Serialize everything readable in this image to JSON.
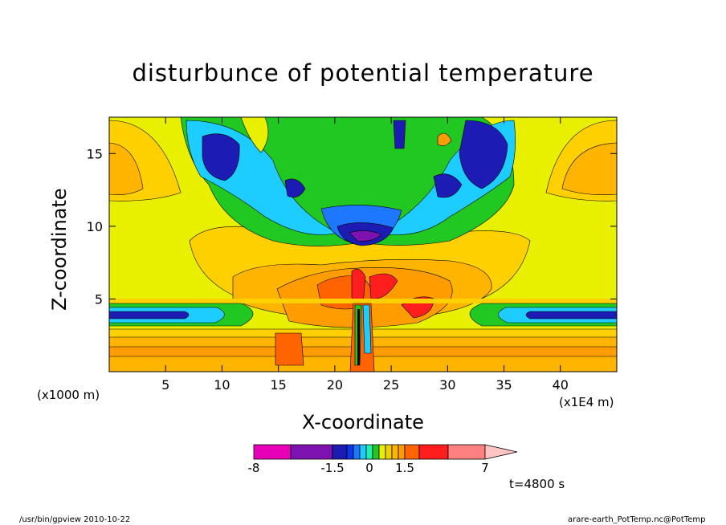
{
  "chart_data": {
    "type": "heatmap",
    "title": "disturbunce of potential temperature",
    "xlabel": "X-coordinate",
    "ylabel": "Z-coordinate",
    "x_unit": "(x1E4 m)",
    "y_unit": "(x1000 m)",
    "xlim": [
      0,
      45
    ],
    "ylim": [
      0,
      17.5
    ],
    "x_ticks": [
      "5",
      "10",
      "15",
      "20",
      "25",
      "30",
      "35",
      "40"
    ],
    "y_ticks": [
      "5",
      "10",
      "15"
    ],
    "colorbar": {
      "levels": [
        -8,
        -4,
        -1.5,
        -1,
        -0.75,
        -0.5,
        -0.25,
        0,
        0.25,
        0.5,
        0.75,
        1,
        1.5,
        3.5,
        5,
        7
      ],
      "labels": [
        "-8",
        "-1.5",
        "0",
        "1.5",
        "7"
      ],
      "colors": [
        "#e800b8",
        "#7d12b0",
        "#1c1cb4",
        "#0d37e8",
        "#1e78ff",
        "#1ecdff",
        "#1ef0ae",
        "#22c822",
        "#e8f000",
        "#f0d000",
        "#ffb400",
        "#ff9c00",
        "#ff6400",
        "#ff1e1e",
        "#ff8080",
        "#ffc4c4"
      ]
    },
    "time_label": "t=4800 s"
  },
  "footer": {
    "left": "/usr/bin/gpview   2010-10-22",
    "right": "arare-earth_PotTemp.nc@PotTemp"
  }
}
